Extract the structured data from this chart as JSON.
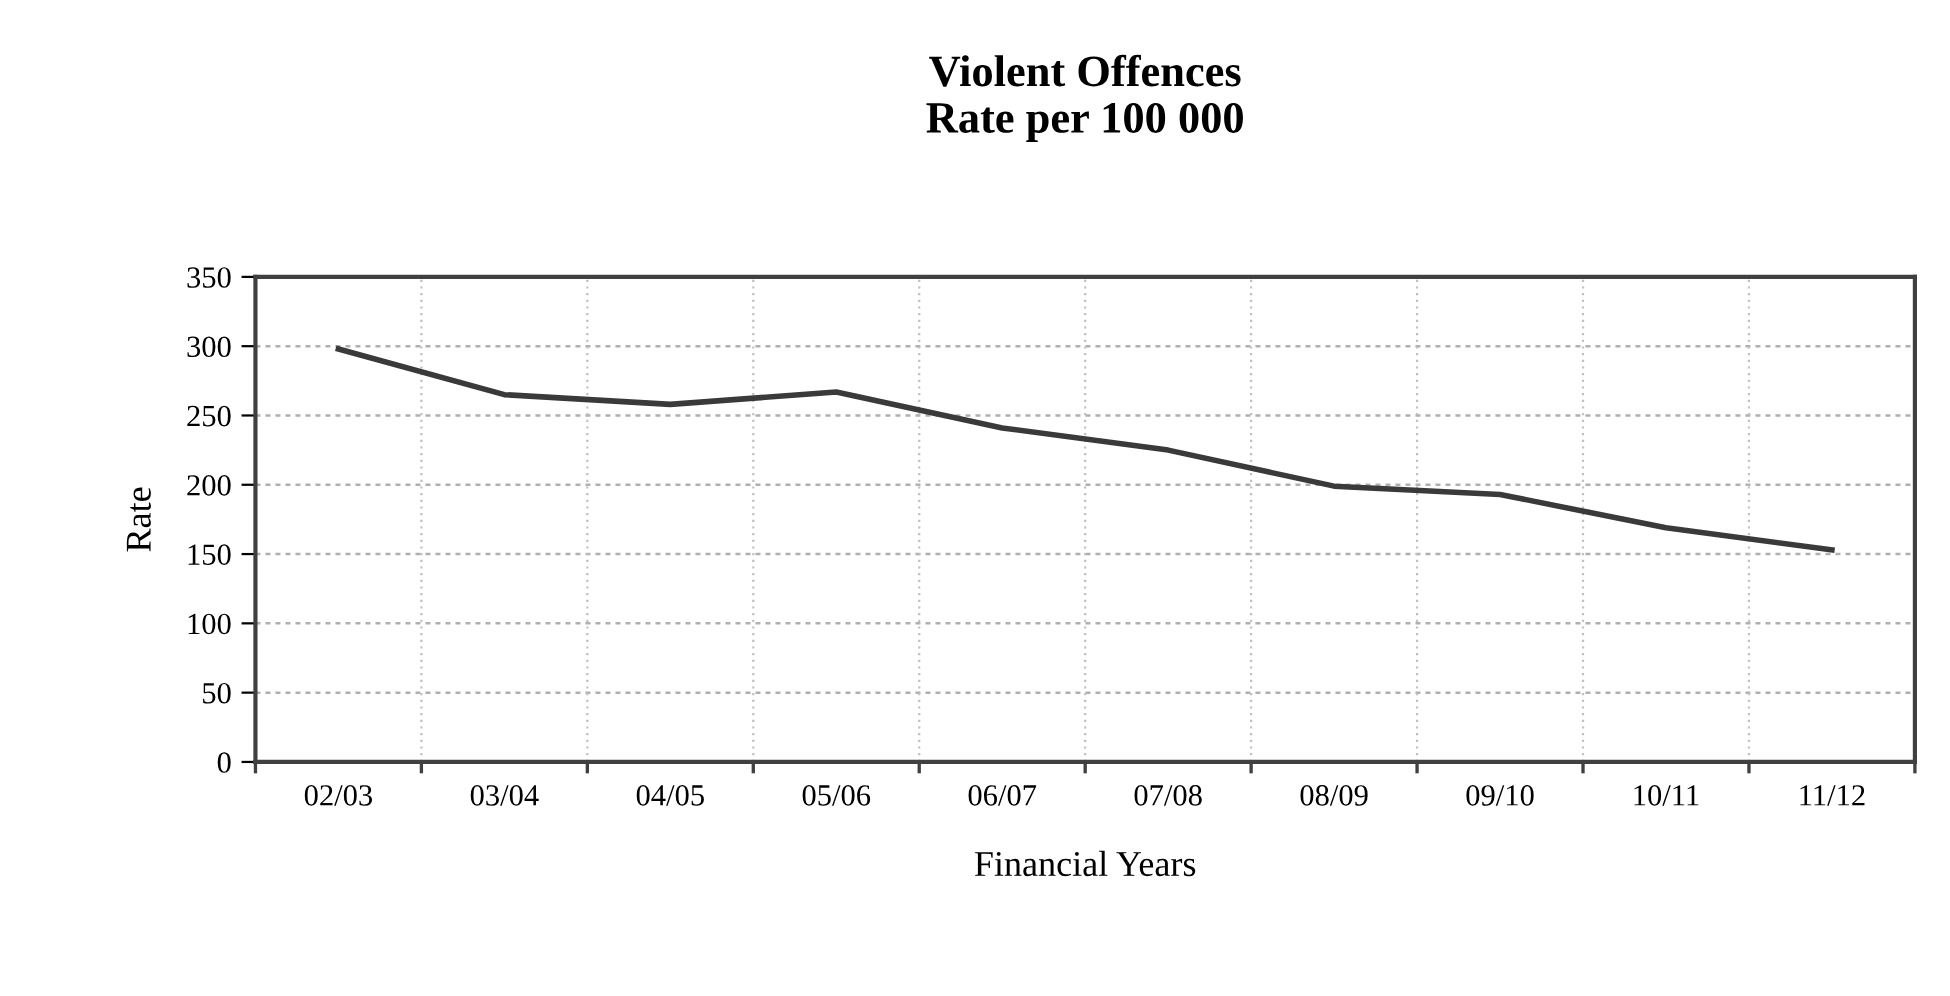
{
  "chart_data": {
    "type": "line",
    "title": "Violent Offences\nRate per 100 000",
    "xlabel": "Financial Years",
    "ylabel": "Rate",
    "categories": [
      "02/03",
      "03/04",
      "04/05",
      "05/06",
      "06/07",
      "07/08",
      "08/09",
      "09/10",
      "10/11",
      "11/12"
    ],
    "series": [
      {
        "color": "#3a3a3a",
        "values": [
          298,
          265,
          258,
          267,
          241,
          225,
          199,
          193,
          169,
          153
        ]
      }
    ],
    "ylim": [
      0,
      350
    ],
    "yticks": [
      0,
      50,
      100,
      150,
      200,
      250,
      300,
      350
    ],
    "grid": true,
    "legend": false,
    "marker": "none",
    "line_style": "solid"
  }
}
